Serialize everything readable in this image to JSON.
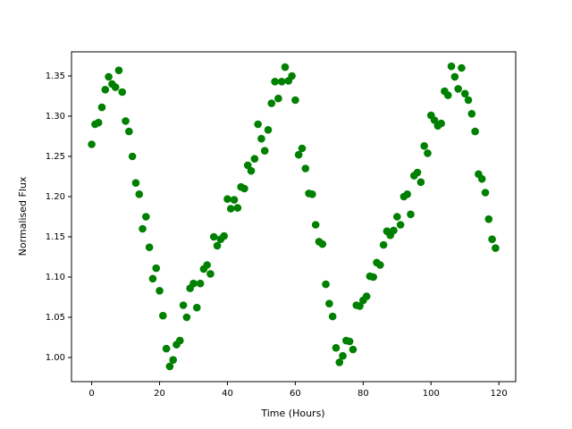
{
  "chart_data": {
    "type": "scatter",
    "xlabel": "Time (Hours)",
    "ylabel": "Normalised Flux",
    "color": "#008000",
    "xlim": [
      -5.95,
      124.95
    ],
    "ylim": [
      0.97,
      1.38
    ],
    "xticks": [
      0,
      20,
      40,
      60,
      80,
      100,
      120
    ],
    "yticks": [
      {
        "value": 1.0,
        "label": "1.00"
      },
      1.05,
      {
        "value": 1.1,
        "label": "1.10"
      },
      1.15,
      {
        "value": 1.2,
        "label": "1.20"
      },
      1.25,
      {
        "value": 1.3,
        "label": "1.30"
      },
      1.35
    ],
    "x": [
      0,
      1,
      2,
      3,
      4,
      5,
      6,
      7,
      8,
      9,
      10,
      11,
      12,
      13,
      14,
      15,
      16,
      17,
      18,
      19,
      20,
      21,
      22,
      23,
      24,
      25,
      26,
      27,
      28,
      29,
      30,
      31,
      32,
      33,
      34,
      35,
      36,
      37,
      38,
      39,
      40,
      41,
      42,
      43,
      44,
      45,
      46,
      47,
      48,
      49,
      50,
      51,
      52,
      53,
      54,
      55,
      56,
      57,
      58,
      59,
      60,
      61,
      62,
      63,
      64,
      65,
      66,
      67,
      68,
      69,
      70,
      71,
      72,
      73,
      74,
      75,
      76,
      77,
      78,
      79,
      80,
      81,
      82,
      83,
      84,
      85,
      86,
      87,
      88,
      89,
      90,
      91,
      92,
      93,
      94,
      95,
      96,
      97,
      98,
      99,
      100,
      101,
      102,
      103,
      104,
      105,
      106,
      107,
      108,
      109,
      110,
      111,
      112,
      113,
      114,
      115,
      116,
      117,
      118,
      119
    ],
    "values": [
      1.265,
      1.29,
      1.292,
      1.311,
      1.333,
      1.349,
      1.34,
      1.336,
      1.357,
      1.33,
      1.294,
      1.281,
      1.25,
      1.217,
      1.203,
      1.16,
      1.175,
      1.137,
      1.098,
      1.111,
      1.083,
      1.052,
      1.011,
      0.989,
      0.997,
      1.016,
      1.021,
      1.065,
      1.05,
      1.086,
      1.092,
      1.062,
      1.092,
      1.11,
      1.115,
      1.104,
      1.15,
      1.139,
      1.147,
      1.151,
      1.197,
      1.185,
      1.196,
      1.186,
      1.212,
      1.21,
      1.239,
      1.232,
      1.247,
      1.29,
      1.272,
      1.257,
      1.283,
      1.316,
      1.343,
      1.322,
      1.343,
      1.361,
      1.344,
      1.35,
      1.32,
      1.252,
      1.26,
      1.235,
      1.204,
      1.203,
      1.165,
      1.144,
      1.141,
      1.091,
      1.067,
      1.051,
      1.012,
      0.994,
      1.002,
      1.021,
      1.02,
      1.01,
      1.065,
      1.064,
      1.071,
      1.076,
      1.101,
      1.1,
      1.118,
      1.115,
      1.14,
      1.157,
      1.152,
      1.158,
      1.175,
      1.165,
      1.2,
      1.203,
      1.178,
      1.226,
      1.23,
      1.218,
      1.263,
      1.254,
      1.301,
      1.295,
      1.288,
      1.291,
      1.331,
      1.326,
      1.362,
      1.349,
      1.334,
      1.36,
      1.328,
      1.32,
      1.303,
      1.281,
      1.228,
      1.222,
      1.205,
      1.172,
      1.147,
      1.136
    ]
  }
}
